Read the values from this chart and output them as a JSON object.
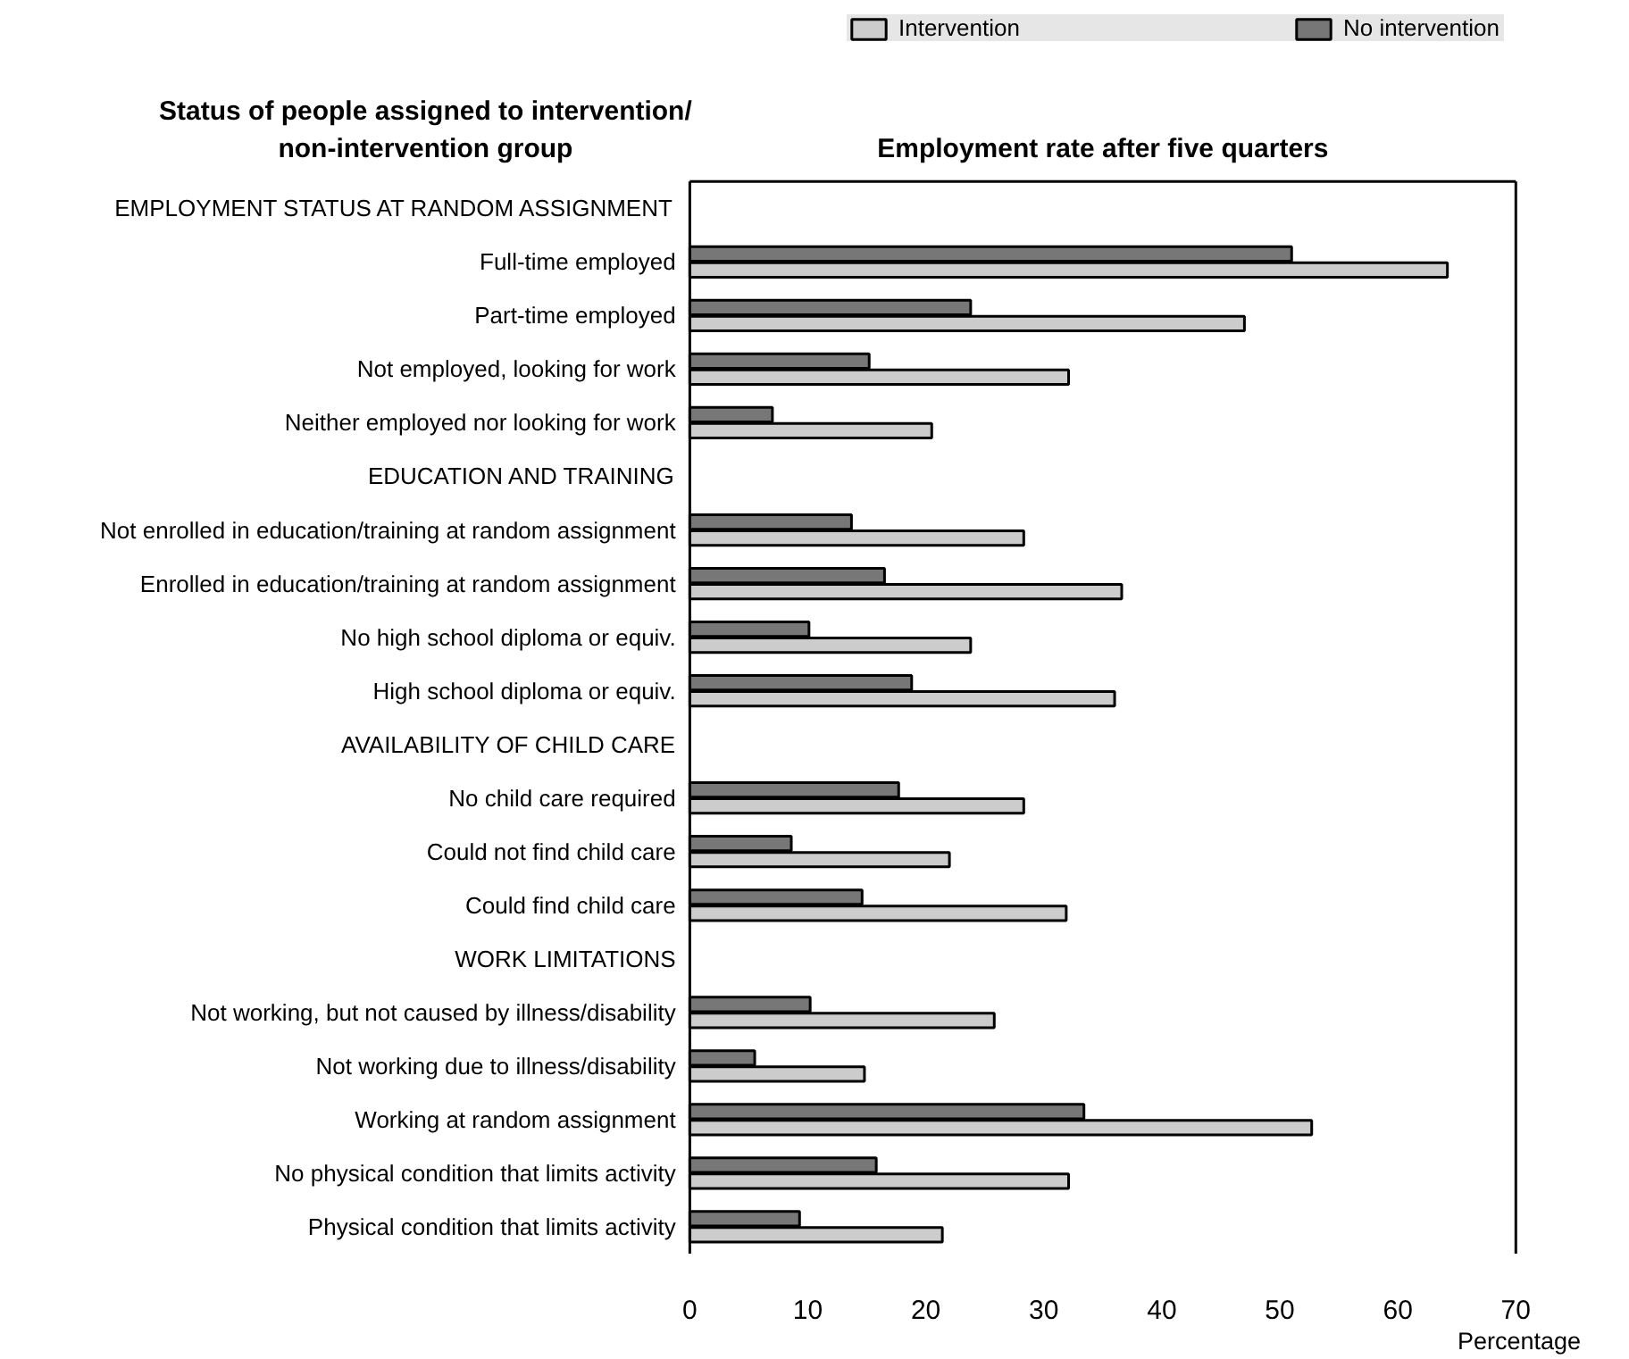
{
  "chart_data": {
    "type": "bar",
    "orientation": "horizontal",
    "title": "Employment rate after five quarters",
    "ylabel": "Status of people assigned to intervention/\nnon-intervention group",
    "xlabel": "Percentage",
    "categories": [
      "EMPLOYMENT STATUS AT RANDOM ASSIGNMENT",
      "Full-time employed",
      "Part-time employed",
      "Not employed, looking for work",
      "Neither employed nor looking for work",
      "EDUCATION AND TRAINING",
      "Not enrolled in education/training at random assignment",
      "Enrolled in education/training at random assignment",
      "No high school diploma or equiv.",
      "High school diploma or equiv.",
      "AVAILABILITY OF CHILD CARE",
      "No child care required",
      "Could not find child care",
      "Could find child care",
      "WORK LIMITATIONS",
      "Not working, but not caused by illness/disability",
      "Not working due to illness/disability",
      "Working at random assignment",
      "No physical condition that limits activity",
      "Physical condition that limits activity"
    ],
    "series": [
      {
        "name": "Intervention",
        "color": "#cccccc",
        "values": [
          null,
          64.2,
          47.0,
          32.1,
          20.5,
          null,
          28.3,
          36.6,
          23.8,
          36.0,
          null,
          28.3,
          22.0,
          31.9,
          null,
          25.8,
          14.8,
          52.7,
          32.1,
          21.4
        ]
      },
      {
        "name": "No intervention",
        "color": "#777777",
        "values": [
          null,
          51.0,
          23.8,
          15.2,
          7.0,
          null,
          13.7,
          16.5,
          10.1,
          18.8,
          null,
          17.7,
          8.6,
          14.6,
          null,
          10.2,
          5.5,
          33.4,
          15.8,
          9.3
        ]
      }
    ],
    "xlim": [
      0,
      70
    ],
    "xticks": [
      0,
      10,
      20,
      30,
      40,
      50,
      60,
      70
    ],
    "grid": false,
    "legend": "top"
  }
}
